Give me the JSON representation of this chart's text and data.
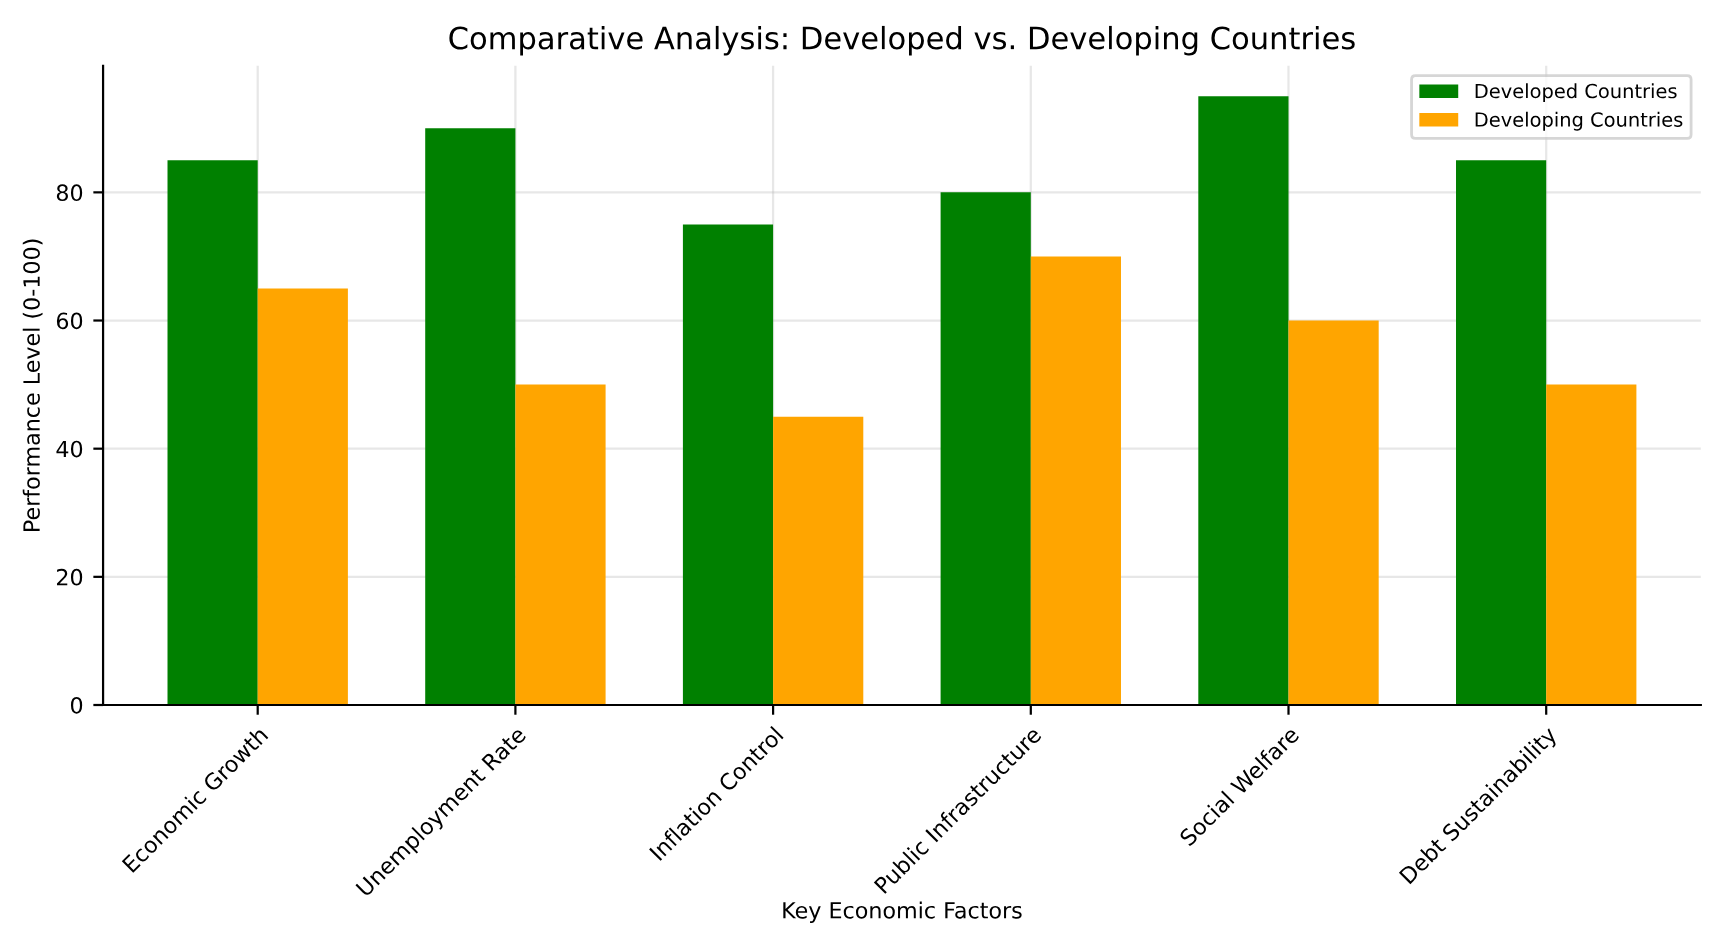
{
  "chart_data": {
    "type": "bar",
    "title": "Comparative Analysis: Developed vs. Developing Countries",
    "xlabel": "Key Economic Factors",
    "ylabel": "Performance Level (0-100)",
    "categories": [
      "Economic Growth",
      "Unemployment Rate",
      "Inflation Control",
      "Public Infrastructure",
      "Social Welfare",
      "Debt Sustainability"
    ],
    "series": [
      {
        "name": "Developed Countries",
        "color": "#008000",
        "values": [
          85,
          90,
          75,
          80,
          95,
          85
        ]
      },
      {
        "name": "Developing Countries",
        "color": "#ffa500",
        "values": [
          65,
          50,
          45,
          70,
          60,
          50
        ]
      }
    ],
    "ylim": [
      0,
      99.75
    ],
    "yticks": [
      0,
      20,
      40,
      60,
      80
    ],
    "grid": true,
    "legend": "top right"
  }
}
